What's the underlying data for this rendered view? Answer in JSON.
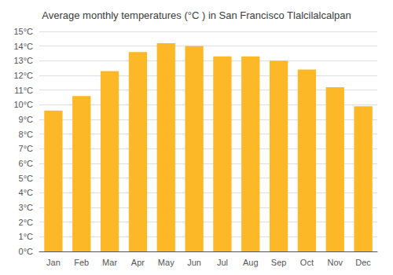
{
  "chart_data": {
    "type": "bar",
    "title": "Average monthly temperatures (°C ) in San Francisco Tlalcilalcalpan",
    "categories": [
      "Jan",
      "Feb",
      "Mar",
      "Apr",
      "May",
      "Jun",
      "Jul",
      "Aug",
      "Sep",
      "Oct",
      "Nov",
      "Dec"
    ],
    "values": [
      9.6,
      10.6,
      12.3,
      13.6,
      14.2,
      14.0,
      13.3,
      13.3,
      13.0,
      12.4,
      11.2,
      9.9
    ],
    "color": "#FDB827",
    "ylim": [
      0,
      15
    ],
    "yticks": [
      {
        "value": 0,
        "label": "0°C"
      },
      {
        "value": 1,
        "label": "1°C"
      },
      {
        "value": 2,
        "label": "2°C"
      },
      {
        "value": 3,
        "label": "3°C"
      },
      {
        "value": 4,
        "label": "4°C"
      },
      {
        "value": 5,
        "label": "5°C"
      },
      {
        "value": 6,
        "label": "6°C"
      },
      {
        "value": 7,
        "label": "7°C"
      },
      {
        "value": 8,
        "label": "8°C"
      },
      {
        "value": 9,
        "label": "9°C"
      },
      {
        "value": 10,
        "label": "10°C"
      },
      {
        "value": 11,
        "label": "11°C"
      },
      {
        "value": 12,
        "label": "12°C"
      },
      {
        "value": 13,
        "label": "13°C"
      },
      {
        "value": 14,
        "label": "14°C"
      },
      {
        "value": 15,
        "label": "15°C"
      }
    ],
    "grid": true
  }
}
